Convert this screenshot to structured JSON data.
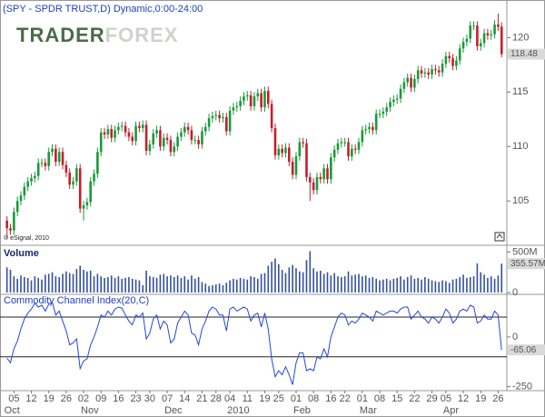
{
  "chart_data": [
    {
      "type": "candlestick",
      "title": "(SPY - SPDR TRUST,D) Dynamic,0:00-24:00",
      "watermark": [
        "TRADER",
        "FOREX"
      ],
      "annotation": "© eSignal, 2010",
      "up_color": "#1a9a3a",
      "down_color": "#c3202a",
      "xlim": [
        -2,
        143.5
      ],
      "xticks": [
        {
          "value": 2,
          "label": "05"
        },
        {
          "value": 7,
          "label": "12"
        },
        {
          "value": 12,
          "label": "19"
        },
        {
          "value": 17,
          "label": "26"
        },
        {
          "value": 22,
          "label": "02"
        },
        {
          "value": 27,
          "label": "09"
        },
        {
          "value": 32,
          "label": "16"
        },
        {
          "value": 37,
          "label": "23"
        },
        {
          "value": 41,
          "label": "30"
        },
        {
          "value": 46,
          "label": "07"
        },
        {
          "value": 51,
          "label": "14"
        },
        {
          "value": 56,
          "label": "21"
        },
        {
          "value": 60,
          "label": "28"
        },
        {
          "value": 64,
          "label": "04"
        },
        {
          "value": 69,
          "label": "11"
        },
        {
          "value": 74,
          "label": "19"
        },
        {
          "value": 78,
          "label": "25"
        },
        {
          "value": 83,
          "label": "01"
        },
        {
          "value": 88,
          "label": "08"
        },
        {
          "value": 93,
          "label": "16"
        },
        {
          "value": 97,
          "label": "22"
        },
        {
          "value": 102,
          "label": "01"
        },
        {
          "value": 107,
          "label": "08"
        },
        {
          "value": 112,
          "label": "15"
        },
        {
          "value": 117,
          "label": "22"
        },
        {
          "value": 122,
          "label": "29"
        },
        {
          "value": 126,
          "label": "05"
        },
        {
          "value": 131,
          "label": "12"
        },
        {
          "value": 136,
          "label": "19"
        },
        {
          "value": 141,
          "label": "26"
        }
      ],
      "month_ticks": [
        {
          "value": 0,
          "label": "Oct"
        },
        {
          "value": 22,
          "label": "Nov"
        },
        {
          "value": 46,
          "label": "Dec"
        },
        {
          "value": 64,
          "label": "2010"
        },
        {
          "value": 83,
          "label": "Feb"
        },
        {
          "value": 102,
          "label": "Mar"
        },
        {
          "value": 126,
          "label": "Apr"
        }
      ],
      "ylim": [
        101.1,
        123.2
      ],
      "yticks": [
        105,
        110,
        115,
        120
      ],
      "open": [
        103.2,
        102.5,
        102.3,
        104.0,
        105.0,
        105.5,
        106.3,
        106.8,
        107.1,
        107.3,
        108.5,
        108.5,
        108.2,
        109.5,
        109.8,
        108.6,
        109.5,
        108.3,
        107.6,
        106.5,
        106.8,
        108.0,
        104.3,
        104.6,
        104.9,
        106.8,
        107.5,
        109.5,
        111.3,
        111.1,
        111.6,
        110.8,
        111.5,
        111.8,
        111.9,
        111.3,
        110.9,
        110.5,
        111.9,
        111.7,
        112.0,
        109.6,
        110.2,
        111.2,
        111.5,
        110.0,
        110.8,
        110.6,
        109.5,
        110.0,
        110.9,
        111.3,
        111.8,
        111.5,
        110.6,
        110.6,
        110.2,
        111.4,
        111.8,
        112.6,
        112.8,
        112.9,
        112.6,
        112.7,
        111.4,
        113.3,
        113.6,
        113.7,
        114.2,
        114.6,
        114.7,
        113.7,
        114.6,
        114.9,
        113.6,
        115.1,
        113.9,
        111.7,
        109.2,
        109.8,
        109.4,
        109.9,
        108.6,
        107.4,
        109.1,
        110.4,
        110.3,
        107.2,
        106.7,
        106.0,
        107.2,
        107.0,
        108.0,
        107.0,
        109.0,
        109.7,
        110.3,
        110.4,
        110.4,
        109.1,
        109.8,
        109.7,
        110.4,
        111.5,
        111.6,
        111.8,
        111.5,
        113.0,
        113.0,
        113.2,
        113.6,
        114.1,
        114.3,
        114.4,
        115.3,
        115.9,
        116.3,
        115.4,
        116.2,
        117.0,
        116.7,
        116.8,
        116.6,
        117.1,
        117.0,
        116.8,
        117.6,
        118.3,
        118.1,
        117.4,
        117.9,
        119.0,
        119.6,
        119.9,
        121.1,
        121.1,
        119.2,
        119.5,
        120.4,
        120.2,
        120.3,
        121.2,
        121.0
      ],
      "high": [
        103.6,
        102.9,
        104.4,
        105.4,
        105.9,
        106.7,
        107.2,
        107.5,
        107.7,
        108.9,
        108.9,
        108.9,
        109.9,
        110.2,
        110.2,
        109.9,
        109.9,
        108.7,
        108.0,
        107.2,
        108.4,
        108.4,
        105.0,
        105.3,
        107.2,
        107.9,
        109.9,
        111.7,
        111.7,
        112.0,
        112.0,
        111.9,
        112.2,
        112.3,
        112.3,
        111.7,
        111.3,
        112.3,
        112.3,
        112.4,
        112.4,
        110.6,
        111.6,
        111.9,
        111.9,
        111.2,
        111.2,
        111.0,
        110.4,
        111.3,
        111.7,
        112.2,
        112.2,
        111.9,
        111.0,
        111.0,
        111.8,
        112.2,
        113.0,
        113.2,
        113.3,
        113.3,
        113.1,
        113.1,
        113.7,
        114.0,
        114.1,
        114.6,
        115.0,
        115.1,
        115.1,
        115.0,
        115.3,
        115.3,
        115.5,
        115.5,
        114.3,
        112.1,
        110.2,
        110.2,
        110.3,
        110.3,
        109.0,
        109.5,
        110.8,
        110.8,
        110.7,
        107.6,
        107.1,
        107.6,
        107.6,
        108.4,
        108.4,
        109.4,
        110.1,
        110.7,
        110.8,
        110.8,
        110.8,
        110.2,
        110.2,
        110.8,
        111.9,
        112.0,
        112.2,
        112.2,
        113.4,
        113.4,
        113.6,
        114.0,
        114.5,
        114.7,
        114.8,
        115.7,
        116.3,
        116.7,
        116.7,
        116.6,
        117.4,
        117.4,
        117.2,
        117.2,
        117.5,
        117.5,
        117.4,
        118.0,
        118.7,
        118.7,
        118.5,
        118.3,
        119.4,
        120.0,
        120.3,
        121.5,
        121.5,
        121.5,
        119.9,
        120.8,
        120.8,
        120.7,
        121.6,
        122.2,
        121.4
      ],
      "low": [
        101.6,
        101.9,
        101.9,
        103.6,
        104.6,
        105.1,
        105.9,
        106.4,
        106.7,
        106.9,
        108.1,
        107.8,
        107.8,
        109.1,
        108.2,
        108.2,
        107.9,
        107.2,
        106.1,
        106.1,
        106.4,
        103.9,
        103.2,
        104.2,
        104.5,
        106.4,
        107.1,
        109.1,
        110.7,
        110.7,
        110.4,
        110.4,
        111.1,
        111.4,
        110.9,
        110.5,
        110.1,
        110.1,
        111.3,
        111.3,
        109.2,
        109.2,
        109.8,
        110.8,
        109.6,
        109.6,
        110.2,
        109.1,
        109.1,
        109.6,
        110.5,
        110.9,
        111.1,
        110.2,
        110.2,
        109.8,
        109.8,
        111.0,
        111.4,
        112.2,
        112.4,
        112.2,
        112.2,
        111.0,
        111.0,
        112.9,
        113.2,
        113.3,
        113.8,
        114.2,
        113.3,
        113.3,
        114.2,
        113.2,
        113.2,
        113.5,
        111.3,
        108.8,
        108.8,
        109.0,
        109.0,
        108.2,
        107.0,
        107.0,
        108.7,
        109.9,
        106.8,
        105.0,
        105.6,
        105.6,
        106.6,
        106.6,
        106.6,
        106.6,
        108.6,
        109.3,
        109.9,
        110.0,
        108.7,
        108.7,
        109.3,
        109.3,
        110.0,
        111.1,
        111.2,
        111.1,
        111.1,
        112.6,
        112.6,
        112.8,
        113.2,
        113.7,
        113.9,
        114.0,
        114.9,
        115.5,
        115.0,
        115.0,
        115.8,
        116.3,
        116.3,
        116.2,
        116.2,
        116.6,
        116.4,
        116.4,
        117.2,
        117.7,
        117.0,
        117.0,
        117.5,
        118.6,
        119.2,
        119.5,
        120.7,
        118.8,
        118.8,
        119.1,
        119.8,
        119.8,
        119.9,
        120.6,
        118.2
      ],
      "close": [
        102.5,
        102.3,
        104.0,
        105.0,
        105.5,
        106.3,
        106.8,
        107.1,
        107.3,
        108.5,
        108.5,
        108.2,
        109.5,
        109.8,
        108.6,
        109.5,
        108.3,
        107.6,
        106.5,
        106.8,
        108.0,
        104.3,
        104.6,
        104.9,
        106.8,
        107.5,
        109.5,
        111.3,
        111.1,
        111.6,
        110.8,
        111.5,
        111.8,
        111.9,
        111.3,
        110.9,
        110.5,
        111.9,
        111.7,
        112.0,
        109.6,
        110.2,
        111.2,
        111.5,
        110.0,
        110.8,
        110.6,
        109.5,
        110.0,
        110.9,
        111.3,
        111.8,
        111.5,
        110.6,
        110.6,
        110.2,
        111.4,
        111.8,
        112.6,
        112.8,
        112.9,
        112.6,
        112.7,
        111.4,
        113.3,
        113.6,
        113.7,
        114.2,
        114.6,
        114.7,
        113.7,
        114.6,
        114.9,
        113.6,
        115.1,
        113.9,
        111.7,
        109.2,
        109.8,
        109.4,
        109.9,
        108.6,
        107.4,
        109.1,
        110.4,
        110.3,
        107.2,
        106.7,
        106.0,
        107.2,
        107.0,
        108.0,
        107.0,
        109.0,
        109.7,
        110.3,
        110.4,
        110.4,
        109.1,
        109.8,
        109.7,
        110.4,
        111.5,
        111.6,
        111.8,
        111.5,
        113.0,
        113.0,
        113.2,
        113.6,
        114.1,
        114.3,
        114.4,
        115.3,
        115.9,
        116.3,
        115.4,
        116.2,
        117.0,
        116.7,
        116.8,
        116.6,
        117.1,
        117.0,
        116.8,
        117.6,
        118.3,
        118.1,
        117.4,
        117.9,
        119.0,
        119.6,
        119.9,
        121.1,
        121.1,
        119.2,
        119.5,
        120.4,
        120.2,
        120.3,
        121.2,
        121.0,
        118.48
      ]
    },
    {
      "type": "bar",
      "title": "Volume",
      "color": "#34509e",
      "ylim": [
        0,
        560
      ],
      "yticks": [
        {
          "value": 500,
          "label": "500M"
        },
        0
      ],
      "values": [
        310,
        280,
        200,
        170,
        210,
        190,
        180,
        150,
        200,
        180,
        160,
        220,
        230,
        250,
        200,
        190,
        230,
        260,
        240,
        230,
        290,
        330,
        280,
        260,
        270,
        200,
        230,
        200,
        180,
        190,
        210,
        180,
        200,
        170,
        180,
        190,
        170,
        160,
        150,
        90,
        270,
        200,
        190,
        180,
        220,
        230,
        200,
        210,
        190,
        210,
        180,
        200,
        160,
        210,
        170,
        190,
        130,
        110,
        80,
        90,
        100,
        110,
        90,
        120,
        150,
        170,
        160,
        180,
        170,
        160,
        200,
        190,
        170,
        230,
        240,
        330,
        380,
        420,
        350,
        280,
        240,
        310,
        340,
        300,
        260,
        250,
        400,
        510,
        300,
        260,
        270,
        230,
        250,
        210,
        240,
        200,
        190,
        200,
        260,
        210,
        220,
        230,
        200,
        210,
        180,
        190,
        170,
        150,
        160,
        170,
        150,
        170,
        180,
        200,
        160,
        190,
        210,
        170,
        180,
        160,
        190,
        170,
        150,
        140,
        130,
        150,
        140,
        120,
        160,
        170,
        190,
        220,
        180,
        190,
        200,
        360,
        250,
        220,
        180,
        200,
        170,
        210,
        355.57
      ],
      "value_labels": {
        "142": "355.57M"
      }
    },
    {
      "type": "line",
      "title": "Commodity Channel Index(20,C)",
      "color": "#2545e0",
      "ylim": [
        -270,
        205
      ],
      "yticks": [
        0,
        -250
      ],
      "levels": [
        100,
        -100
      ],
      "values": [
        -107,
        -130,
        -60,
        -20,
        40,
        90,
        120,
        140,
        170,
        150,
        160,
        130,
        165,
        175,
        110,
        130,
        80,
        30,
        -40,
        -30,
        -10,
        -160,
        -120,
        -110,
        -40,
        0,
        50,
        110,
        100,
        130,
        110,
        140,
        150,
        145,
        110,
        80,
        60,
        110,
        100,
        120,
        -10,
        20,
        90,
        110,
        40,
        80,
        60,
        -30,
        -10,
        70,
        100,
        130,
        110,
        20,
        10,
        -40,
        40,
        80,
        130,
        150,
        140,
        110,
        110,
        30,
        140,
        150,
        130,
        140,
        150,
        140,
        80,
        110,
        120,
        50,
        120,
        40,
        -110,
        -200,
        -170,
        -190,
        -150,
        -190,
        -240,
        -130,
        -80,
        -80,
        -170,
        -160,
        -170,
        -100,
        -110,
        -60,
        -100,
        0,
        50,
        100,
        120,
        110,
        60,
        80,
        70,
        90,
        120,
        110,
        100,
        80,
        130,
        120,
        110,
        120,
        130,
        130,
        120,
        140,
        150,
        150,
        90,
        110,
        130,
        100,
        90,
        70,
        100,
        90,
        70,
        100,
        140,
        120,
        70,
        90,
        130,
        140,
        130,
        160,
        150,
        70,
        80,
        110,
        90,
        90,
        130,
        110,
        -65.06
      ]
    }
  ]
}
